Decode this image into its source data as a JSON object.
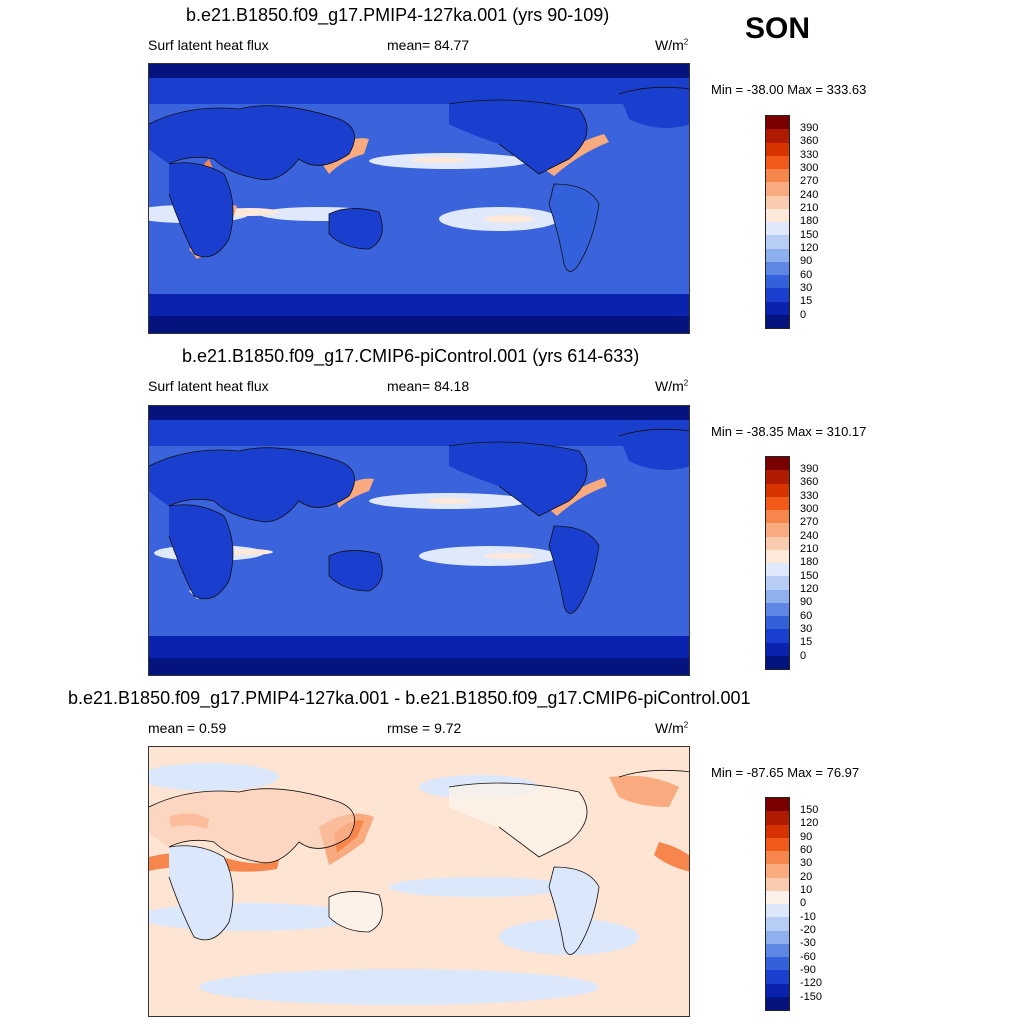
{
  "season": "SON",
  "panels": [
    {
      "title": "b.e21.B1850.f09_g17.PMIP4-127ka.001 (yrs 90-109)",
      "left_label": "Surf latent heat flux",
      "mid_label": "mean=  84.77",
      "units_base": "W/m",
      "units_sup": "2",
      "minmax": "Min = -38.00 Max = 333.63",
      "colorbar_labels": [
        "390",
        "360",
        "330",
        "300",
        "270",
        "240",
        "210",
        "180",
        "150",
        "120",
        "90",
        "60",
        "30",
        "15",
        "0"
      ]
    },
    {
      "title": "b.e21.B1850.f09_g17.CMIP6-piControl.001 (yrs 614-633)",
      "left_label": "Surf latent heat flux",
      "mid_label": "mean=  84.18",
      "units_base": "W/m",
      "units_sup": "2",
      "minmax": "Min = -38.35 Max = 310.17",
      "colorbar_labels": [
        "390",
        "360",
        "330",
        "300",
        "270",
        "240",
        "210",
        "180",
        "150",
        "120",
        "90",
        "60",
        "30",
        "15",
        "0"
      ]
    },
    {
      "title": "b.e21.B1850.f09_g17.PMIP4-127ka.001 - b.e21.B1850.f09_g17.CMIP6-piControl.001",
      "left_label": "mean =   0.59",
      "mid_label": "rmse =   9.72",
      "units_base": "W/m",
      "units_sup": "2",
      "minmax": "Min = -87.65 Max =  76.97",
      "colorbar_labels": [
        "150",
        "120",
        "90",
        "60",
        "30",
        "20",
        "10",
        "0",
        "-10",
        "-20",
        "-30",
        "-60",
        "-90",
        "-120",
        "-150"
      ]
    }
  ],
  "colors": {
    "flux_scale": [
      "#7a0000",
      "#b01a00",
      "#d63300",
      "#f25a1a",
      "#f7864d",
      "#f9aa7f",
      "#fbcbb0",
      "#fde8da",
      "#dfe9fb",
      "#b8cdf6",
      "#8eb0ef",
      "#5f88e6",
      "#3360db",
      "#1a3fcf",
      "#0a22b0",
      "#05137e"
    ],
    "diff_scale": [
      "#7a0000",
      "#b01a00",
      "#d63300",
      "#f25a1a",
      "#f7864d",
      "#f9aa7f",
      "#fbcbb0",
      "#fdf2ea",
      "#dbe7fb",
      "#b8cdf6",
      "#8eb0ef",
      "#5f88e6",
      "#3360db",
      "#1a3fcf",
      "#0a22b0",
      "#05137e"
    ]
  }
}
